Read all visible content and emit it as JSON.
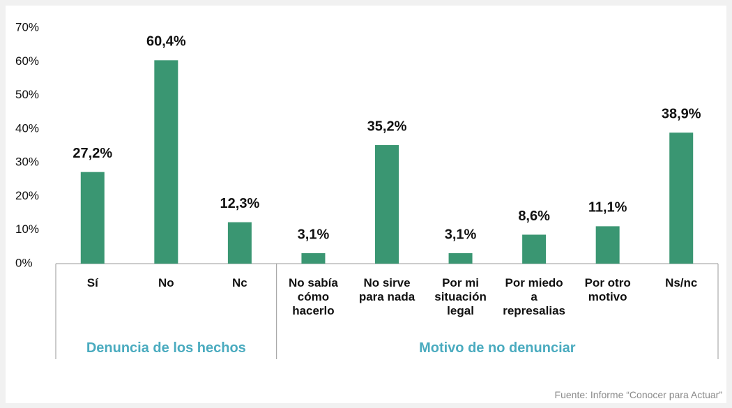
{
  "chart_data": {
    "type": "bar",
    "categories": [
      "Sí",
      "No",
      "Nc",
      "No sabía\ncómo\nhacerlo",
      "No sirve\npara nada",
      "Por mi\nsituación\nlegal",
      "Por miedo\na\nrepresalias",
      "Por otro\nmotivo",
      "Ns/nc"
    ],
    "values": [
      27.2,
      60.4,
      12.3,
      3.1,
      35.2,
      3.1,
      8.6,
      11.1,
      38.9
    ],
    "value_labels": [
      "27,2%",
      "60,4%",
      "12,3%",
      "3,1%",
      "35,2%",
      "3,1%",
      "8,6%",
      "11,1%",
      "38,9%"
    ],
    "groups": [
      {
        "label": "Denuncia de los hechos",
        "count": 3
      },
      {
        "label": "Motivo de no denunciar",
        "count": 6
      }
    ],
    "color": "#3a9672",
    "ylim": [
      0,
      70
    ],
    "yticks": [
      {
        "value": 0,
        "label": "0%"
      },
      {
        "value": 10,
        "label": "10%"
      },
      {
        "value": 20,
        "label": "20%"
      },
      {
        "value": 30,
        "label": "30%"
      },
      {
        "value": 40,
        "label": "40%"
      },
      {
        "value": 50,
        "label": "50%"
      },
      {
        "value": 60,
        "label": "60%"
      },
      {
        "value": 70,
        "label": "70%"
      }
    ],
    "grid": false,
    "source": "Fuente: Informe “Conocer para Actuar”"
  }
}
